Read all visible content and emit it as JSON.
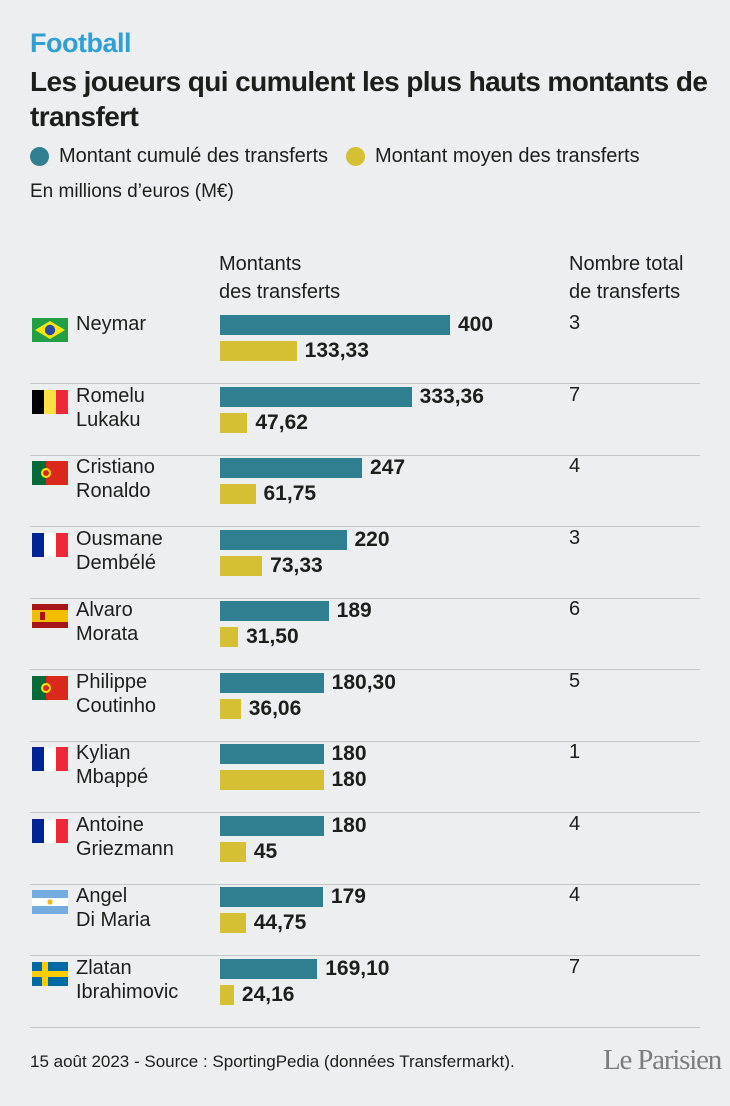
{
  "header": {
    "kicker": "Football",
    "title": "Les joueurs qui cumulent les plus hauts montants de transfert",
    "legend_total": "Montant cumulé des transferts",
    "legend_avg": "Montant moyen des transferts",
    "unit": "En millions d’euros (M€)"
  },
  "colors": {
    "total": "#2f7f90",
    "avg": "#d5bf32",
    "kicker": "#2f9fd6"
  },
  "columns": {
    "amounts_line1": "Montants",
    "amounts_line2": "des transferts",
    "count_line1": "Nombre total",
    "count_line2": "de transferts"
  },
  "chart_data": {
    "type": "bar",
    "title": "Les joueurs qui cumulent les plus hauts montants de transfert",
    "unit": "En millions d’euros (M€)",
    "categories": [
      "Neymar",
      "Romelu Lukaku",
      "Cristiano Ronaldo",
      "Ousmane Dembélé",
      "Alvaro Morata",
      "Philippe Coutinho",
      "Kylian Mbappé",
      "Antoine Griezmann",
      "Angel Di Maria",
      "Zlatan Ibrahimovic"
    ],
    "series": [
      {
        "name": "Montant cumulé des transferts",
        "values": [
          400,
          333.36,
          247,
          220,
          189,
          180.3,
          180,
          180,
          179,
          169.1
        ]
      },
      {
        "name": "Montant moyen des transferts",
        "values": [
          133.33,
          47.62,
          61.75,
          73.33,
          31.5,
          36.06,
          180,
          45,
          44.75,
          24.16
        ]
      }
    ],
    "xlim": [
      0,
      400
    ],
    "rows": [
      {
        "first": "Neymar",
        "last": "",
        "flag": "brazil-flag",
        "total": 400,
        "total_label": "400",
        "avg": 133.33,
        "avg_label": "133,33",
        "count": "3"
      },
      {
        "first": "Romelu",
        "last": "Lukaku",
        "flag": "belgium-flag",
        "total": 333.36,
        "total_label": "333,36",
        "avg": 47.62,
        "avg_label": "47,62",
        "count": "7"
      },
      {
        "first": "Cristiano",
        "last": "Ronaldo",
        "flag": "portugal-flag",
        "total": 247,
        "total_label": "247",
        "avg": 61.75,
        "avg_label": "61,75",
        "count": "4"
      },
      {
        "first": "Ousmane",
        "last": "Dembélé",
        "flag": "france-flag",
        "total": 220,
        "total_label": "220",
        "avg": 73.33,
        "avg_label": "73,33",
        "count": "3"
      },
      {
        "first": "Alvaro",
        "last": "Morata",
        "flag": "spain-flag",
        "total": 189,
        "total_label": "189",
        "avg": 31.5,
        "avg_label": "31,50",
        "count": "6"
      },
      {
        "first": "Philippe",
        "last": "Coutinho",
        "flag": "portugal-flag",
        "total": 180.3,
        "total_label": "180,30",
        "avg": 36.06,
        "avg_label": "36,06",
        "count": "5"
      },
      {
        "first": "Kylian",
        "last": "Mbappé",
        "flag": "france-flag",
        "total": 180,
        "total_label": "180",
        "avg": 180,
        "avg_label": "180",
        "count": "1"
      },
      {
        "first": "Antoine",
        "last": "Griezmann",
        "flag": "france-flag",
        "total": 180,
        "total_label": "180",
        "avg": 45,
        "avg_label": "45",
        "count": "4"
      },
      {
        "first": "Angel",
        "last": "Di Maria",
        "flag": "argentina-flag",
        "total": 179,
        "total_label": "179",
        "avg": 44.75,
        "avg_label": "44,75",
        "count": "4"
      },
      {
        "first": "Zlatan",
        "last": "Ibrahimovic",
        "flag": "sweden-flag",
        "total": 169.1,
        "total_label": "169,10",
        "avg": 24.16,
        "avg_label": "24,16",
        "count": "7"
      }
    ]
  },
  "footer": {
    "source": "15 août 2023 - Source : SportingPedia (données Transfermarkt).",
    "logo": "Le Parisien"
  }
}
